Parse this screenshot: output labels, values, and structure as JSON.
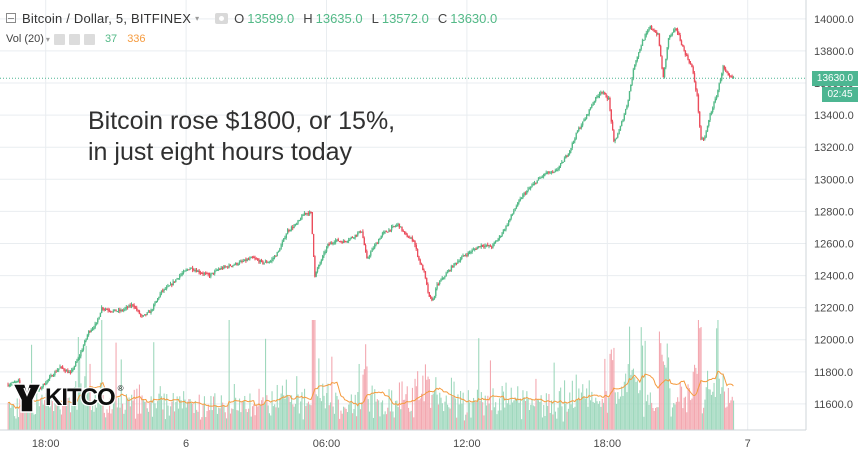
{
  "header": {
    "symbol": "Bitcoin / Dollar, 5, BITFINEX",
    "caret": "▾",
    "ohlc": [
      {
        "key": "O",
        "value": "13599.0"
      },
      {
        "key": "H",
        "value": "13635.0"
      },
      {
        "key": "L",
        "value": "13572.0"
      },
      {
        "key": "C",
        "value": "13630.0"
      }
    ]
  },
  "volume_indicator": {
    "title": "Vol (20)",
    "caret": "▾",
    "value_a": "37",
    "value_b": "336"
  },
  "annotation": {
    "line1": "Bitcoin rose $1800, or 15%,",
    "line2": "in just eight hours today"
  },
  "price_label": "13630.0",
  "time_label": "02:45",
  "logo": {
    "text": "KITCO",
    "reg": "®"
  },
  "colors": {
    "up": "#53b987",
    "down": "#eb4d5c",
    "vol_up": "#9fd8bd",
    "vol_down": "#f3a8b0",
    "ma": "#f59b3f",
    "grid": "#e9edf0",
    "price_line": "#4db692"
  },
  "chart_data": {
    "type": "candlestick",
    "interval": "5 min",
    "y_range": [
      11450,
      14080
    ],
    "y_ticks": [
      11600,
      11800,
      12000,
      12200,
      12400,
      12600,
      12800,
      13000,
      13200,
      13400,
      13600,
      13800,
      14000
    ],
    "y_tick_labels": [
      "11600.0",
      "11800.0",
      "12000.0",
      "12200.0",
      "12400.0",
      "12600.0",
      "12800.0",
      "13000.0",
      "13200.0",
      "13400.0",
      "13600.0",
      "13800.0",
      "14000.0"
    ],
    "x_range": [
      0,
      560
    ],
    "x_ticks": [
      {
        "x": 29,
        "label": "18:00"
      },
      {
        "x": 137,
        "label": "6"
      },
      {
        "x": 245,
        "label": "06:00"
      },
      {
        "x": 353,
        "label": "12:00"
      },
      {
        "x": 461,
        "label": "18:00"
      },
      {
        "x": 569,
        "label": "7"
      }
    ],
    "last_price": 13630.0,
    "grid": true,
    "path_anchors": [
      [
        0,
        11720
      ],
      [
        8,
        11740
      ],
      [
        12,
        11640
      ],
      [
        18,
        11650
      ],
      [
        25,
        11700
      ],
      [
        34,
        11780
      ],
      [
        40,
        11830
      ],
      [
        48,
        11790
      ],
      [
        55,
        11900
      ],
      [
        62,
        12050
      ],
      [
        68,
        12100
      ],
      [
        72,
        12200
      ],
      [
        80,
        12180
      ],
      [
        87,
        12180
      ],
      [
        96,
        12220
      ],
      [
        103,
        12140
      ],
      [
        110,
        12180
      ],
      [
        118,
        12300
      ],
      [
        125,
        12340
      ],
      [
        132,
        12400
      ],
      [
        140,
        12450
      ],
      [
        148,
        12420
      ],
      [
        155,
        12400
      ],
      [
        162,
        12440
      ],
      [
        170,
        12460
      ],
      [
        178,
        12480
      ],
      [
        188,
        12510
      ],
      [
        196,
        12480
      ],
      [
        202,
        12490
      ],
      [
        208,
        12550
      ],
      [
        215,
        12680
      ],
      [
        222,
        12720
      ],
      [
        228,
        12790
      ],
      [
        233,
        12790
      ],
      [
        236,
        12400
      ],
      [
        240,
        12480
      ],
      [
        246,
        12590
      ],
      [
        252,
        12620
      ],
      [
        258,
        12610
      ],
      [
        265,
        12640
      ],
      [
        272,
        12680
      ],
      [
        276,
        12500
      ],
      [
        280,
        12560
      ],
      [
        288,
        12660
      ],
      [
        294,
        12690
      ],
      [
        300,
        12720
      ],
      [
        306,
        12650
      ],
      [
        312,
        12620
      ],
      [
        316,
        12500
      ],
      [
        320,
        12420
      ],
      [
        324,
        12260
      ],
      [
        327,
        12250
      ],
      [
        330,
        12340
      ],
      [
        336,
        12400
      ],
      [
        342,
        12460
      ],
      [
        350,
        12520
      ],
      [
        358,
        12560
      ],
      [
        364,
        12590
      ],
      [
        372,
        12580
      ],
      [
        378,
        12640
      ],
      [
        384,
        12720
      ],
      [
        390,
        12820
      ],
      [
        396,
        12900
      ],
      [
        402,
        12950
      ],
      [
        408,
        13000
      ],
      [
        414,
        13040
      ],
      [
        420,
        13040
      ],
      [
        426,
        13100
      ],
      [
        432,
        13180
      ],
      [
        438,
        13300
      ],
      [
        444,
        13380
      ],
      [
        450,
        13480
      ],
      [
        456,
        13550
      ],
      [
        462,
        13500
      ],
      [
        466,
        13230
      ],
      [
        470,
        13300
      ],
      [
        476,
        13460
      ],
      [
        482,
        13720
      ],
      [
        488,
        13860
      ],
      [
        494,
        13950
      ],
      [
        500,
        13900
      ],
      [
        504,
        13630
      ],
      [
        508,
        13880
      ],
      [
        514,
        13940
      ],
      [
        520,
        13800
      ],
      [
        526,
        13700
      ],
      [
        530,
        13520
      ],
      [
        533,
        13240
      ],
      [
        536,
        13260
      ],
      [
        540,
        13400
      ],
      [
        545,
        13520
      ],
      [
        550,
        13700
      ],
      [
        554,
        13640
      ],
      [
        558,
        13630
      ]
    ],
    "volume_note": "per-bar volumes, scaled to the volume pane",
    "volume_ma_period": 20
  }
}
